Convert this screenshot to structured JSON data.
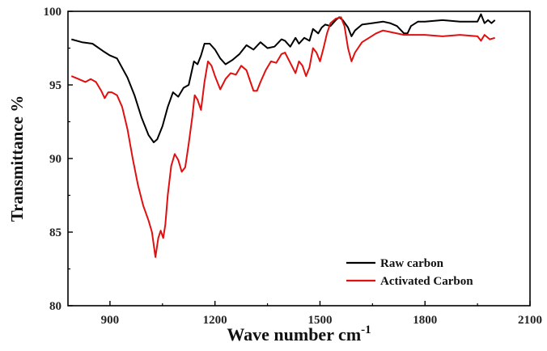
{
  "chart_data": {
    "type": "line",
    "title": "",
    "xlabel": "Wave number cm",
    "xlabel_superscript": "-1",
    "ylabel": "Transmittance %",
    "xlim": [
      780,
      2100
    ],
    "ylim": [
      80,
      100
    ],
    "xticks": [
      "900",
      "1200",
      "1500",
      "1800",
      "2100"
    ],
    "yticks": [
      "80",
      "85",
      "90",
      "95",
      "100"
    ],
    "grid": false,
    "legend_position": "bottom-right",
    "series": [
      {
        "name": "Raw carbon",
        "color": "#000000",
        "x": [
          790,
          820,
          850,
          880,
          900,
          920,
          950,
          970,
          990,
          1010,
          1025,
          1035,
          1050,
          1065,
          1080,
          1095,
          1110,
          1125,
          1140,
          1150,
          1160,
          1170,
          1185,
          1200,
          1215,
          1230,
          1250,
          1270,
          1290,
          1310,
          1330,
          1350,
          1370,
          1390,
          1400,
          1415,
          1430,
          1440,
          1455,
          1470,
          1480,
          1495,
          1505,
          1515,
          1530,
          1545,
          1555,
          1565,
          1580,
          1590,
          1600,
          1620,
          1650,
          1680,
          1700,
          1720,
          1740,
          1750,
          1760,
          1780,
          1800,
          1850,
          1900,
          1950,
          1960,
          1970,
          1980,
          1990,
          2000
        ],
        "y": [
          98.1,
          97.9,
          97.8,
          97.3,
          97.0,
          96.8,
          95.5,
          94.3,
          92.8,
          91.6,
          91.1,
          91.3,
          92.2,
          93.5,
          94.5,
          94.2,
          94.8,
          95.0,
          96.6,
          96.4,
          97.0,
          97.8,
          97.8,
          97.4,
          96.8,
          96.4,
          96.7,
          97.1,
          97.7,
          97.4,
          97.9,
          97.5,
          97.6,
          98.1,
          98.0,
          97.6,
          98.2,
          97.8,
          98.2,
          98.0,
          98.8,
          98.5,
          98.9,
          99.1,
          99.0,
          99.4,
          99.6,
          99.4,
          98.9,
          98.3,
          98.7,
          99.1,
          99.2,
          99.3,
          99.2,
          99.0,
          98.5,
          98.5,
          99.0,
          99.3,
          99.3,
          99.4,
          99.3,
          99.3,
          99.8,
          99.2,
          99.4,
          99.2,
          99.4
        ]
      },
      {
        "name": "Activated Carbon",
        "color": "#e01010",
        "x": [
          790,
          810,
          830,
          845,
          860,
          875,
          885,
          895,
          905,
          920,
          935,
          950,
          965,
          980,
          995,
          1010,
          1020,
          1030,
          1038,
          1045,
          1052,
          1058,
          1065,
          1075,
          1085,
          1095,
          1105,
          1115,
          1125,
          1135,
          1142,
          1150,
          1160,
          1170,
          1180,
          1190,
          1200,
          1215,
          1230,
          1245,
          1260,
          1275,
          1290,
          1300,
          1310,
          1320,
          1330,
          1345,
          1360,
          1375,
          1390,
          1400,
          1415,
          1430,
          1440,
          1450,
          1460,
          1470,
          1480,
          1490,
          1500,
          1510,
          1520,
          1530,
          1545,
          1560,
          1570,
          1580,
          1590,
          1600,
          1620,
          1640,
          1660,
          1680,
          1700,
          1740,
          1800,
          1850,
          1900,
          1950,
          1960,
          1970,
          1985,
          2000
        ],
        "y": [
          95.6,
          95.4,
          95.2,
          95.4,
          95.2,
          94.6,
          94.1,
          94.5,
          94.5,
          94.3,
          93.5,
          92.0,
          90.0,
          88.2,
          86.8,
          85.8,
          85.0,
          83.3,
          84.6,
          85.1,
          84.6,
          85.5,
          87.5,
          89.5,
          90.3,
          89.9,
          89.1,
          89.4,
          91.0,
          92.8,
          94.3,
          94.0,
          93.3,
          95.2,
          96.6,
          96.3,
          95.6,
          94.7,
          95.4,
          95.8,
          95.7,
          96.3,
          96.0,
          95.3,
          94.6,
          94.6,
          95.2,
          96.0,
          96.6,
          96.5,
          97.1,
          97.2,
          96.5,
          95.8,
          96.6,
          96.3,
          95.6,
          96.2,
          97.5,
          97.2,
          96.6,
          97.5,
          98.5,
          99.2,
          99.5,
          99.6,
          99.0,
          97.5,
          96.6,
          97.2,
          97.9,
          98.2,
          98.5,
          98.7,
          98.6,
          98.4,
          98.4,
          98.3,
          98.4,
          98.3,
          98.0,
          98.4,
          98.1,
          98.2
        ]
      }
    ]
  }
}
